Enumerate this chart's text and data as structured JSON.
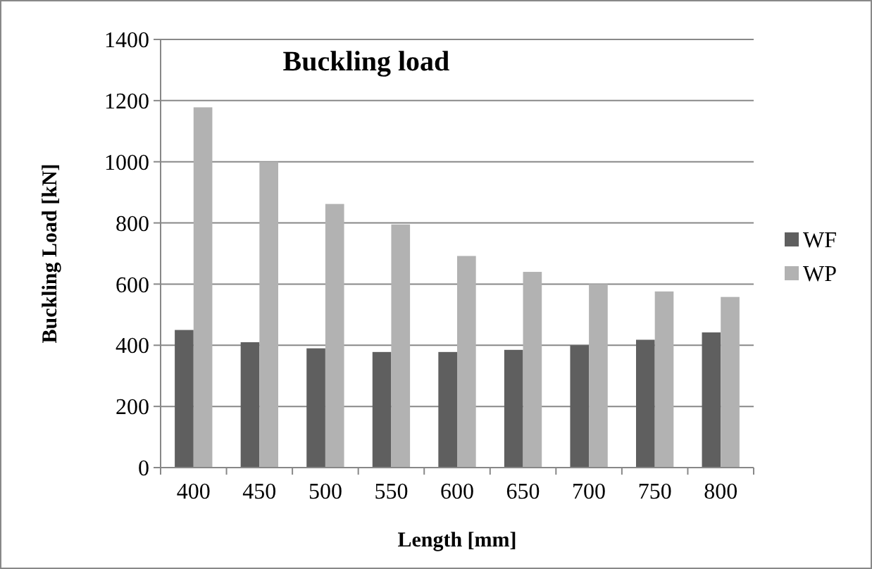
{
  "chart_data": {
    "type": "bar",
    "title": "Buckling load",
    "xlabel": "Length [mm]",
    "ylabel": "Buckling Load [kN]",
    "categories": [
      "400",
      "450",
      "500",
      "550",
      "600",
      "650",
      "700",
      "750",
      "800"
    ],
    "series": [
      {
        "name": "WF",
        "color": "#5f5f5f",
        "values": [
          450,
          410,
          390,
          378,
          378,
          385,
          400,
          418,
          442
        ]
      },
      {
        "name": "WP",
        "color": "#b2b2b2",
        "values": [
          1178,
          1000,
          862,
          795,
          692,
          640,
          600,
          576,
          558
        ]
      }
    ],
    "ylim": [
      0,
      1400
    ],
    "yticks": [
      0,
      200,
      400,
      600,
      800,
      1000,
      1200,
      1400
    ],
    "grid": "y",
    "legend": "right"
  }
}
